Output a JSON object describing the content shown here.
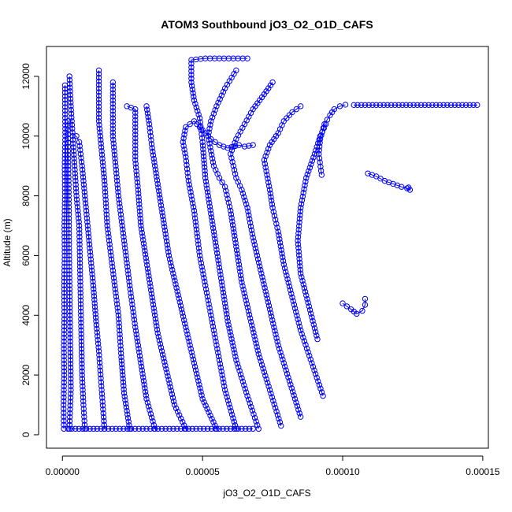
{
  "chart_data": {
    "type": "scatter",
    "title": "ATOM3 Southbound jO3_O2_O1D_CAFS",
    "xlabel": "jO3_O2_O1D_CAFS",
    "ylabel": "Altitude (m)",
    "xlim": [
      -5.7e-06,
      0.000152
    ],
    "ylim": [
      -450,
      13000
    ],
    "x_ticks": [
      0,
      5e-05,
      0.0001,
      0.00015
    ],
    "x_tick_labels": [
      "0.00000",
      "0.00005",
      "0.00010",
      "0.00015"
    ],
    "y_ticks": [
      0,
      2000,
      4000,
      6000,
      8000,
      10000,
      12000
    ],
    "y_tick_labels": [
      "0",
      "2000",
      "4000",
      "6000",
      "8000",
      "10000",
      "12000"
    ],
    "marker": "open-circle",
    "connect_points": true,
    "grid": false,
    "legend": "none",
    "colors": {
      "series": "#0000ff",
      "axis": "#000000",
      "background": "#ffffff"
    },
    "series": [
      {
        "x": [
          5e-07,
          4e-07,
          6e-07,
          5e-07,
          7e-07,
          6e-07,
          8e-07,
          7e-07,
          9e-07,
          8e-07,
          1e-06,
          9e-07
        ],
        "y": [
          200,
          1000,
          2000,
          3000,
          4000,
          5000,
          6000,
          7000,
          8000,
          9000,
          10000,
          11700
        ]
      },
      {
        "x": [
          2.5e-06,
          3e-06,
          2.8e-06,
          2.6e-06,
          2.4e-06,
          2.3e-06,
          2.2e-06,
          2e-06,
          2.1e-06,
          2e-06
        ],
        "y": [
          200,
          1500,
          3000,
          4500,
          6000,
          7500,
          8500,
          9500,
          10200,
          10500
        ]
      },
      {
        "x": [
          8e-06,
          7.5e-06,
          7e-06,
          6.8e-06,
          6.6e-06,
          6.4e-06,
          6.2e-06,
          6e-06,
          5e-06,
          4e-06,
          3e-06,
          2.5e-06
        ],
        "y": [
          200,
          1000,
          2000,
          3000,
          4000,
          5000,
          6000,
          7000,
          8000,
          9500,
          11000,
          12000
        ]
      },
      {
        "x": [
          1.5e-05,
          1.4e-05,
          1.3e-05,
          1.2e-05,
          1.1e-05,
          1e-05,
          9e-06,
          8e-06,
          7e-06,
          6e-06,
          5e-06
        ],
        "y": [
          200,
          1500,
          2800,
          3800,
          5000,
          6000,
          7000,
          8000,
          9000,
          9800,
          10000
        ]
      },
      {
        "x": [
          2.4e-05,
          2.2e-05,
          2.1e-05,
          2e-05,
          1.8e-05,
          1.6e-05,
          1.5e-05,
          1.4e-05,
          1.3e-05,
          1.3e-05
        ],
        "y": [
          200,
          1400,
          2600,
          4000,
          5500,
          7000,
          8500,
          9500,
          10500,
          12200
        ]
      },
      {
        "x": [
          3.3e-05,
          3e-05,
          2.8e-05,
          2.6e-05,
          2.4e-05,
          2.2e-05,
          2e-05,
          1.9e-05,
          1.8e-05,
          1.8e-05
        ],
        "y": [
          200,
          1200,
          2400,
          3600,
          5000,
          6500,
          8000,
          9000,
          10000,
          11800
        ]
      },
      {
        "x": [
          4.4e-05,
          4e-05,
          3.7e-05,
          3.4e-05,
          3.2e-05,
          3e-05,
          2.8e-05,
          2.7e-05,
          2.6e-05,
          2.6e-05,
          2.3e-05
        ],
        "y": [
          200,
          1000,
          2200,
          3400,
          4600,
          5800,
          7000,
          8200,
          9200,
          10900,
          11000
        ]
      },
      {
        "x": [
          5.5e-05,
          5e-05,
          4.7e-05,
          4.4e-05,
          4.1e-05,
          3.8e-05,
          3.6e-05,
          3.4e-05,
          3.2e-05,
          3.1e-05,
          3e-05
        ],
        "y": [
          200,
          1200,
          2400,
          3600,
          4800,
          6000,
          7200,
          8400,
          9600,
          10400,
          11000
        ]
      },
      {
        "x": [
          6.2e-05,
          5.8e-05,
          5.5e-05,
          5.2e-05,
          4.9e-05,
          4.7e-05,
          4.5e-05,
          4.4e-05,
          4.3e-05,
          4.4e-05,
          4.7e-05,
          5e-05,
          5.3e-05,
          5.6e-05,
          5.9e-05,
          6.3e-05,
          6.5e-05,
          6.8e-05
        ],
        "y": [
          200,
          1500,
          3000,
          4500,
          6000,
          7500,
          8500,
          9300,
          9800,
          10300,
          10500,
          10200,
          9900,
          9700,
          9600,
          9700,
          9650,
          9700
        ]
      },
      {
        "x": [
          7e-05,
          6.6e-05,
          6.2e-05,
          5.9e-05,
          5.7e-05,
          5.5e-05,
          5.3e-05,
          5.1e-05,
          5e-05,
          4.9e-05,
          4.7e-05,
          4.6e-05,
          4.6e-05,
          5.1e-05,
          5.6e-05,
          6.1e-05,
          6.6e-05
        ],
        "y": [
          200,
          1300,
          2500,
          3800,
          5000,
          6200,
          7400,
          8600,
          9800,
          10600,
          11200,
          11800,
          12550,
          12600,
          12600,
          12600,
          12600
        ]
      },
      {
        "x": [
          7.8e-05,
          7.4e-05,
          7e-05,
          6.7e-05,
          6.4e-05,
          6.2e-05,
          6e-05,
          5.8e-05,
          5.6e-05,
          5.4e-05,
          5.3e-05,
          5.2e-05,
          5.3e-05,
          5.5e-05,
          5.8e-05,
          6.2e-05
        ],
        "y": [
          300,
          1500,
          2700,
          3900,
          5100,
          6300,
          7500,
          8300,
          8600,
          9000,
          9500,
          10000,
          10500,
          11000,
          11600,
          12200
        ]
      },
      {
        "x": [
          8.5e-05,
          8.1e-05,
          7.7e-05,
          7.4e-05,
          7.1e-05,
          6.8e-05,
          6.6e-05,
          6.4e-05,
          6.2e-05,
          6.1e-05,
          6e-05,
          6.2e-05,
          6.5e-05,
          6.8e-05,
          7.2e-05,
          7.5e-05
        ],
        "y": [
          600,
          1800,
          3000,
          4200,
          5400,
          6600,
          7600,
          8200,
          8600,
          9000,
          9400,
          9900,
          10400,
          10900,
          11400,
          11800
        ]
      },
      {
        "x": [
          9.3e-05,
          8.9e-05,
          8.5e-05,
          8.2e-05,
          7.9e-05,
          7.7e-05,
          7.5e-05,
          7.4e-05,
          7.3e-05,
          7.2e-05,
          7.4e-05,
          7.7e-05,
          7.9e-05,
          8.2e-05,
          8.5e-05
        ],
        "y": [
          1300,
          2400,
          3500,
          4600,
          5700,
          6800,
          7600,
          8200,
          8700,
          9200,
          9700,
          10100,
          10500,
          10800,
          11000
        ]
      },
      {
        "x": [
          9.1e-05,
          8.8e-05,
          8.5e-05,
          8.4e-05,
          8.5e-05,
          8.7e-05,
          9e-05,
          9.2e-05,
          9.4e-05
        ],
        "y": [
          3200,
          4300,
          5400,
          6500,
          7600,
          8600,
          9400,
          10000,
          10400
        ]
      },
      {
        "x": [
          9.25e-05,
          9.15e-05,
          9.2e-05,
          9.35e-05,
          9.55e-05,
          9.7e-05,
          9.9e-05,
          0.000101
        ],
        "y": [
          8700,
          9400,
          9900,
          10400,
          10700,
          10900,
          11000,
          11050
        ]
      },
      {
        "x": [
          0.000104,
          0.000108,
          0.000112,
          0.000116,
          0.00012,
          0.000124,
          0.000128,
          0.000132,
          0.000136,
          0.00014,
          0.000144,
          0.000148
        ],
        "y": [
          11040,
          11040,
          11040,
          11040,
          11040,
          11040,
          11040,
          11040,
          11040,
          11040,
          11040,
          11040
        ]
      },
      {
        "x": [
          0.000109,
          0.000112,
          0.000115,
          0.000118,
          0.000121,
          0.000123,
          0.000124,
          0.0001235
        ],
        "y": [
          8750,
          8650,
          8500,
          8400,
          8300,
          8250,
          8200,
          8280
        ]
      },
      {
        "x": [
          0.0001,
          0.000103,
          0.000105,
          0.000107,
          0.000108,
          0.000108
        ],
        "y": [
          4400,
          4200,
          4050,
          4150,
          4350,
          4550
        ]
      },
      {
        "x": [
          2e-06,
          1.5e-05,
          3e-05,
          4.5e-05,
          6e-05,
          6.8e-05
        ],
        "y": [
          200,
          200,
          200,
          200,
          200,
          200
        ]
      }
    ]
  }
}
